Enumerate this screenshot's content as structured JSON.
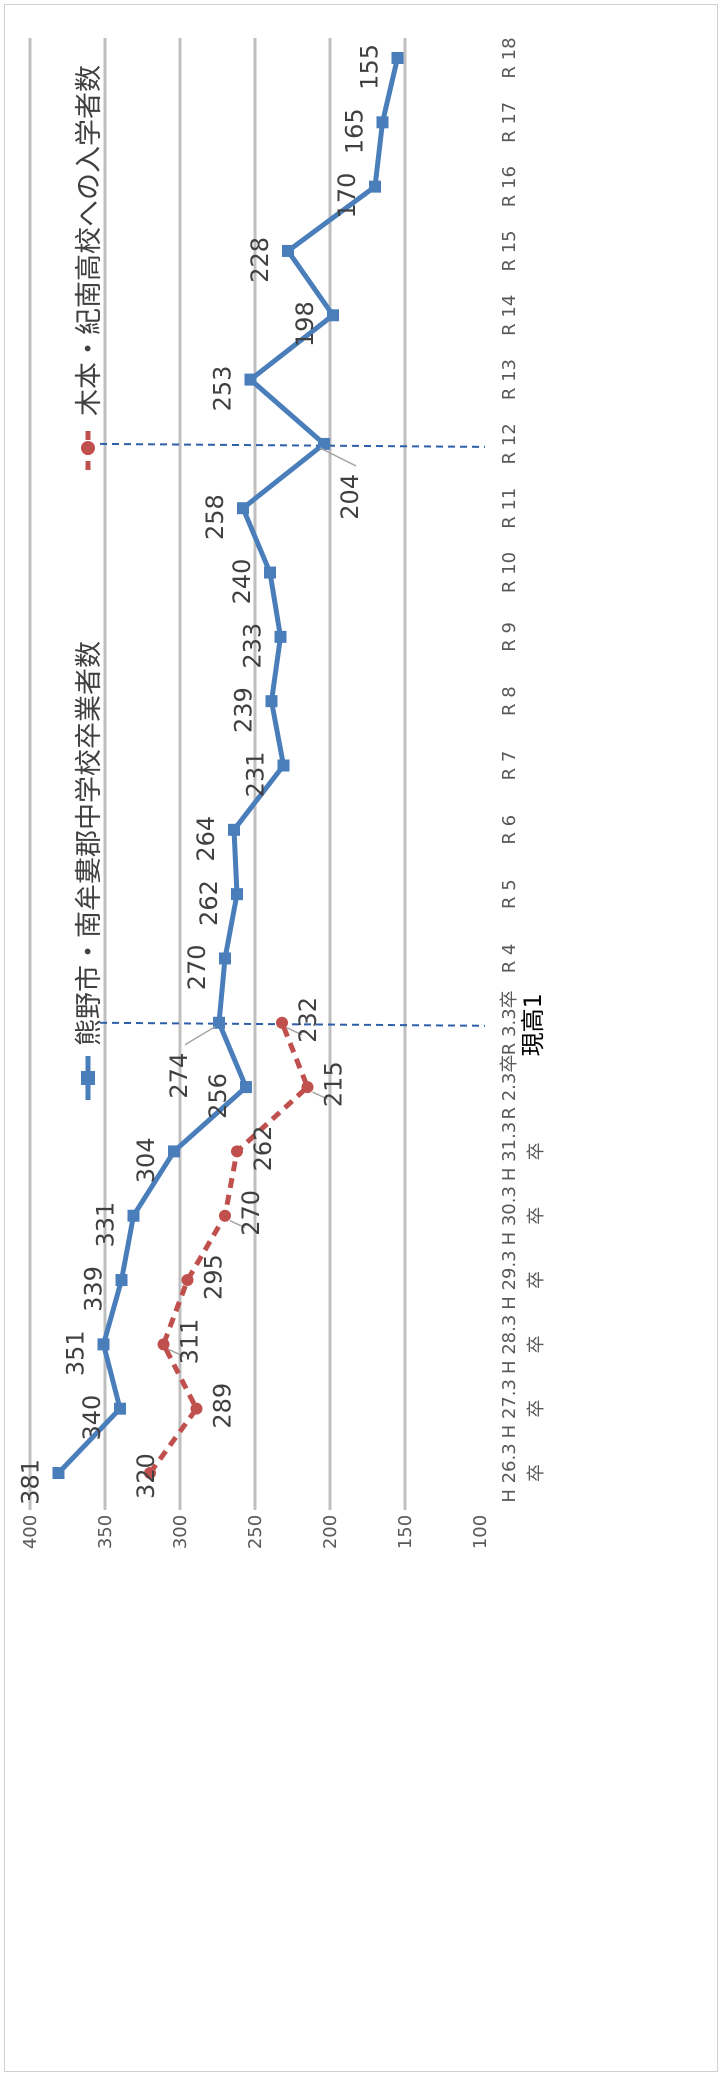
{
  "chart_data": {
    "type": "line",
    "title": "",
    "xlabel": "",
    "ylabel": "",
    "ylim": [
      100,
      400
    ],
    "yticks": [
      100,
      150,
      200,
      250,
      300,
      350,
      400
    ],
    "ytick_labels": [
      "100",
      "150",
      "200",
      "250",
      "300",
      "350",
      "400"
    ],
    "grid": true,
    "orientation": "rotated 90° clockwise",
    "legend_placement": "top",
    "categories": [
      "H 26.3卒",
      "H 27.3卒",
      "H 28.3卒",
      "H 29.3卒",
      "H 30.3卒",
      "H 31.3卒",
      "R 2.3卒",
      "R 3.3卒",
      "R 4",
      "R 5",
      "R 6",
      "R 7",
      "R 8",
      "R 9",
      "R 10",
      "R 11",
      "R 12",
      "R 13",
      "R 14",
      "R 15",
      "R 16",
      "R 17",
      "R 18"
    ],
    "category_labels": [
      [
        "H 26.3",
        "卒"
      ],
      [
        "H 27.3",
        "卒"
      ],
      [
        "H 28.3",
        "卒"
      ],
      [
        "H 29.3",
        "卒"
      ],
      [
        "H 30.3",
        "卒"
      ],
      [
        "H 31.3",
        "卒"
      ],
      [
        "R 2.3卒",
        ""
      ],
      [
        "R 3.3卒",
        ""
      ],
      [
        "R 4",
        ""
      ],
      [
        "R 5",
        ""
      ],
      [
        "R 6",
        ""
      ],
      [
        "R 7",
        ""
      ],
      [
        "R 8",
        ""
      ],
      [
        "R 9",
        ""
      ],
      [
        "R 10",
        ""
      ],
      [
        "R 11",
        ""
      ],
      [
        "R 12",
        ""
      ],
      [
        "R 13",
        ""
      ],
      [
        "R 14",
        ""
      ],
      [
        "R 15",
        ""
      ],
      [
        "R 16",
        ""
      ],
      [
        "R 17",
        ""
      ],
      [
        "R 18",
        ""
      ]
    ],
    "series": [
      {
        "name": "熊野市・南牟婁郡中学校卒業者数",
        "color": "#4a7ebb",
        "marker": "square",
        "line_style": "solid",
        "values": [
          381,
          340,
          351,
          339,
          331,
          304,
          256,
          274,
          270,
          262,
          264,
          231,
          239,
          233,
          240,
          258,
          204,
          253,
          198,
          228,
          170,
          165,
          155
        ]
      },
      {
        "name": "木本・紀南高校への入学者数",
        "color": "#c0504d",
        "marker": "circle",
        "line_style": "dashed",
        "values": [
          320,
          289,
          311,
          295,
          270,
          262,
          215,
          232,
          null,
          null,
          null,
          null,
          null,
          null,
          null,
          null,
          null,
          null,
          null,
          null,
          null,
          null,
          null
        ]
      }
    ],
    "vertical_markers": [
      {
        "category": "R 3.3卒",
        "style": "dashed",
        "color": "#2e5fa8"
      },
      {
        "category": "R 12",
        "style": "dashed",
        "color": "#2e5fa8"
      }
    ],
    "annotations": [
      {
        "text": "現高1",
        "category": "R 3.3卒"
      }
    ]
  }
}
